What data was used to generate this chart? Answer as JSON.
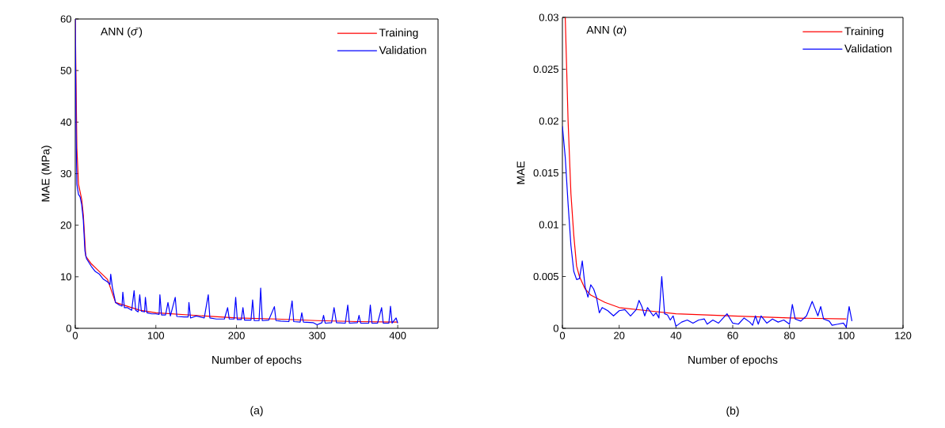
{
  "chart_data": [
    {
      "type": "line",
      "xlabel": "Number of epochs",
      "ylabel": "MAE (MPa)",
      "xlim": [
        0,
        450
      ],
      "ylim": [
        0,
        60
      ],
      "xticks": [
        0,
        100,
        200,
        300,
        400
      ],
      "yticks": [
        0,
        10,
        20,
        30,
        40,
        50,
        60
      ],
      "legend": "top right",
      "grid": false,
      "marker": "none",
      "line_style": "solid",
      "annotations": [
        "ANN (*σ̄*)",
        "(a)"
      ],
      "series": [
        {
          "name": "Training",
          "color": "#ff0000",
          "x": [
            0,
            2,
            4,
            8,
            10,
            13,
            20,
            30,
            40,
            50,
            60,
            80,
            100,
            150,
            200,
            250,
            300,
            350,
            400
          ],
          "values": [
            60,
            35,
            28,
            25,
            22,
            14,
            12.5,
            11,
            9.5,
            5,
            4.5,
            3.5,
            3,
            2.5,
            2,
            1.8,
            1.5,
            1.3,
            1.2
          ]
        },
        {
          "name": "Validation",
          "color": "#0000ff",
          "x": [
            0,
            1,
            2,
            4,
            6,
            8,
            10,
            12,
            14,
            16,
            20,
            25,
            30,
            35,
            40,
            43,
            44,
            46,
            50,
            55,
            58,
            59,
            61,
            65,
            70,
            73,
            75,
            78,
            80,
            82,
            86,
            87,
            89,
            95,
            100,
            104,
            105,
            107,
            112,
            115,
            118,
            124,
            126,
            135,
            140,
            141,
            143,
            150,
            160,
            165,
            167,
            175,
            185,
            189,
            191,
            197,
            199,
            201,
            206,
            208,
            210,
            218,
            220,
            222,
            228,
            230,
            232,
            240,
            247,
            249,
            255,
            265,
            269,
            271,
            279,
            281,
            283,
            295,
            300,
            306,
            308,
            310,
            318,
            321,
            324,
            335,
            338,
            340,
            350,
            352,
            354,
            364,
            366,
            368,
            375,
            380,
            382,
            389,
            391,
            393,
            398,
            400
          ],
          "values": [
            60,
            38,
            28,
            26,
            25.5,
            24,
            21,
            15,
            13.5,
            13,
            12,
            11,
            10.5,
            9.5,
            9,
            8.5,
            10.5,
            8,
            5,
            4.5,
            4.3,
            7,
            4,
            4,
            3.5,
            7.3,
            3.5,
            3.2,
            6.5,
            3.3,
            3.2,
            6,
            3,
            2.8,
            2.8,
            2.7,
            6.5,
            2.6,
            2.6,
            5,
            2.4,
            6,
            2.3,
            2.2,
            2.2,
            5,
            2,
            2.4,
            2,
            6.5,
            2,
            1.8,
            1.8,
            4,
            1.8,
            1.8,
            6,
            1.7,
            1.7,
            4,
            1.6,
            1.6,
            5.5,
            1.5,
            1.5,
            7.8,
            1.5,
            1.6,
            4.2,
            1.5,
            1.4,
            1.3,
            5.3,
            1.3,
            1.2,
            3,
            1.2,
            1.1,
            0.7,
            1.1,
            2.5,
            1,
            1.1,
            4,
            1.1,
            1,
            4.5,
            1,
            1.1,
            2.5,
            1,
            1,
            4.5,
            1,
            1,
            4,
            1,
            1,
            4.3,
            1,
            2,
            1
          ]
        }
      ]
    },
    {
      "type": "line",
      "xlabel": "Number of epochs",
      "ylabel": "MAE",
      "xlim": [
        0,
        120
      ],
      "ylim": [
        0,
        0.03
      ],
      "xticks": [
        0,
        20,
        40,
        60,
        80,
        100,
        120
      ],
      "yticks": [
        0,
        0.005,
        0.01,
        0.015,
        0.02,
        0.025,
        0.03
      ],
      "legend": "top right",
      "grid": false,
      "marker": "none",
      "line_style": "solid",
      "annotations": [
        "ANN (*α*)",
        "(b)"
      ],
      "series": [
        {
          "name": "Training",
          "color": "#ff0000",
          "x": [
            1,
            2,
            3,
            4,
            5,
            6,
            8,
            10,
            15,
            20,
            30,
            40,
            60,
            80,
            100
          ],
          "values": [
            0.03,
            0.02,
            0.013,
            0.009,
            0.006,
            0.005,
            0.0038,
            0.0032,
            0.0025,
            0.002,
            0.0017,
            0.0014,
            0.0012,
            0.001,
            0.0009
          ]
        },
        {
          "name": "Validation",
          "color": "#0000ff",
          "x": [
            0,
            1,
            2,
            3,
            4,
            5,
            6,
            7,
            8,
            9,
            10,
            11,
            12,
            13,
            14,
            16,
            18,
            20,
            22,
            24,
            26,
            27,
            28,
            29,
            30,
            32,
            33,
            34,
            35,
            36,
            37,
            38,
            39,
            40,
            42,
            44,
            46,
            48,
            50,
            51,
            53,
            55,
            58,
            60,
            62,
            64,
            66,
            67,
            68,
            69,
            70,
            72,
            74,
            76,
            78,
            80,
            81,
            82,
            84,
            86,
            88,
            89,
            90,
            91,
            92,
            94,
            95,
            97,
            99,
            100,
            101,
            102
          ],
          "values": [
            0.0195,
            0.0165,
            0.012,
            0.008,
            0.0055,
            0.0047,
            0.0048,
            0.0065,
            0.004,
            0.003,
            0.0042,
            0.0038,
            0.003,
            0.0015,
            0.002,
            0.0017,
            0.0012,
            0.0017,
            0.0018,
            0.0012,
            0.0018,
            0.0027,
            0.0021,
            0.0012,
            0.002,
            0.0012,
            0.0015,
            0.001,
            0.005,
            0.0014,
            0.0013,
            0.0008,
            0.0012,
            0.0002,
            0.0006,
            0.0008,
            0.0005,
            0.0008,
            0.0009,
            0.0004,
            0.0008,
            0.0005,
            0.0014,
            0.0005,
            0.0004,
            0.001,
            0.0006,
            0.0003,
            0.0012,
            0.0004,
            0.0012,
            0.0005,
            0.0009,
            0.0006,
            0.0008,
            0.0004,
            0.0023,
            0.0009,
            0.0007,
            0.0012,
            0.0026,
            0.0019,
            0.0012,
            0.0021,
            0.0009,
            0.0007,
            0.0003,
            0.0004,
            0.0005,
            0.0001,
            0.0021,
            0.0007
          ]
        }
      ]
    }
  ]
}
